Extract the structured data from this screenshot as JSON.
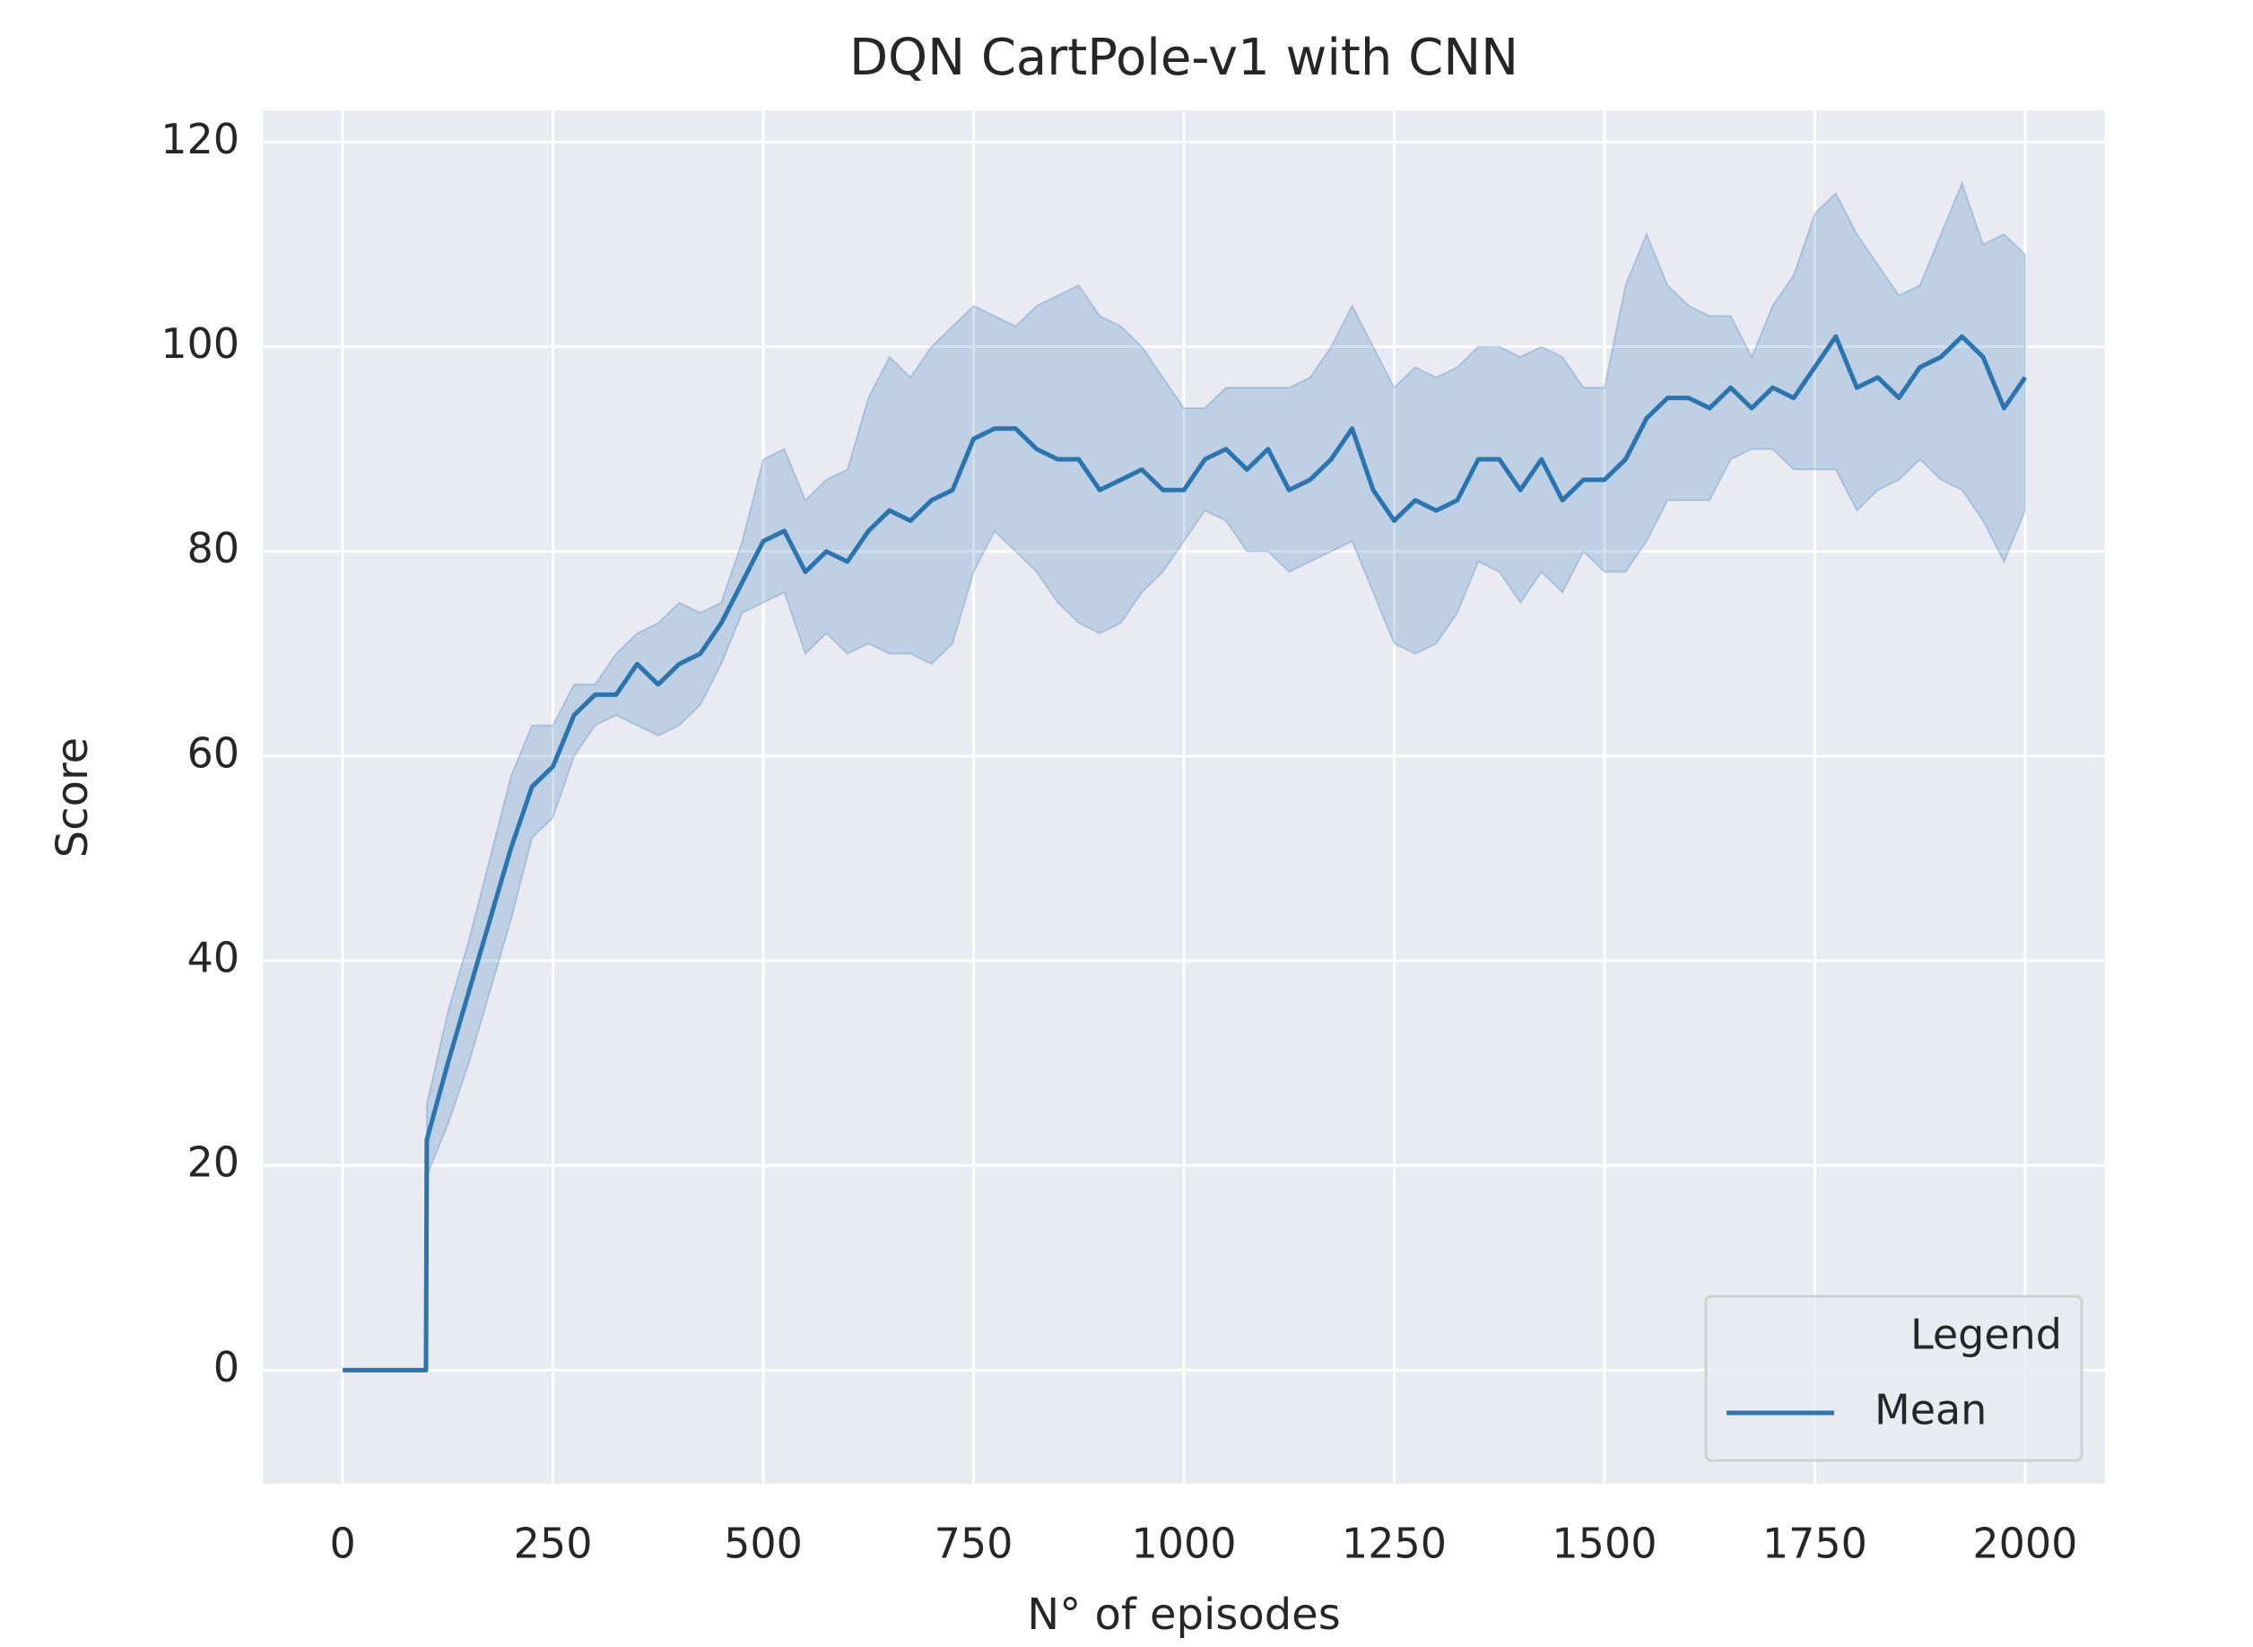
{
  "chart_data": {
    "type": "line",
    "title": "DQN CartPole-v1 with CNN",
    "xlabel": "N° of episodes",
    "ylabel": "Score",
    "legend_title": "Legend",
    "legend": "lower right",
    "grid": true,
    "x": [
      0,
      99,
      100,
      125,
      150,
      175,
      200,
      225,
      250,
      275,
      300,
      325,
      350,
      375,
      400,
      425,
      450,
      475,
      500,
      525,
      550,
      575,
      600,
      625,
      650,
      675,
      700,
      725,
      750,
      775,
      800,
      825,
      850,
      875,
      900,
      925,
      950,
      975,
      1000,
      1025,
      1050,
      1075,
      1100,
      1125,
      1150,
      1175,
      1200,
      1225,
      1250,
      1275,
      1300,
      1325,
      1350,
      1375,
      1400,
      1425,
      1450,
      1475,
      1500,
      1525,
      1550,
      1575,
      1600,
      1625,
      1650,
      1675,
      1700,
      1725,
      1750,
      1775,
      1800,
      1825,
      1850,
      1875,
      1900,
      1925,
      1950,
      1975,
      2000
    ],
    "series": [
      {
        "name": "Mean",
        "color": "#2a74b0",
        "values": [
          0,
          0,
          22.5,
          30,
          37,
          44,
          51,
          57,
          59,
          64,
          66,
          66,
          69,
          67,
          69,
          70,
          73,
          77,
          81,
          82,
          78,
          80,
          79,
          82,
          84,
          83,
          85,
          86,
          91,
          92,
          92,
          90,
          89,
          89,
          86,
          87,
          88,
          86,
          86,
          89,
          90,
          88,
          90,
          86,
          87,
          89,
          92,
          86,
          83,
          85,
          84,
          85,
          89,
          89,
          86,
          89,
          85,
          87,
          87,
          89,
          93,
          95,
          95,
          94,
          96,
          94,
          96,
          95,
          98,
          101,
          96,
          97,
          95,
          98,
          99,
          101,
          99,
          94,
          97
        ],
        "lower": [
          0,
          0,
          19,
          24,
          30,
          37,
          44,
          52,
          54,
          60,
          63,
          64,
          63,
          62,
          63,
          65,
          69,
          74,
          75,
          76,
          70,
          72,
          70,
          71,
          70,
          70,
          69,
          71,
          78,
          82,
          80,
          78,
          75,
          73,
          72,
          73,
          76,
          78,
          81,
          84,
          83,
          80,
          80,
          78,
          79,
          80,
          81,
          76,
          71,
          70,
          71,
          74,
          79,
          78,
          75,
          78,
          76,
          80,
          78,
          78,
          81,
          85,
          85,
          85,
          89,
          90,
          90,
          88,
          88,
          88,
          84,
          86,
          87,
          89,
          87,
          86,
          83,
          79,
          84
        ],
        "upper": [
          0,
          0,
          26,
          35,
          42,
          50,
          58,
          63,
          63,
          67,
          67,
          70,
          72,
          73,
          75,
          74,
          75,
          81,
          89,
          90,
          85,
          87,
          88,
          95,
          99,
          97,
          100,
          102,
          104,
          103,
          102,
          104,
          105,
          106,
          103,
          102,
          100,
          97,
          94,
          94,
          96,
          96,
          96,
          96,
          97,
          100,
          104,
          100,
          96,
          98,
          97,
          98,
          100,
          100,
          99,
          100,
          99,
          96,
          96,
          106,
          111,
          106,
          104,
          103,
          103,
          99,
          104,
          107,
          113,
          115,
          111,
          108,
          105,
          106,
          111,
          116,
          110,
          111,
          109
        ]
      }
    ],
    "xlim": [
      -95,
      2095
    ],
    "ylim": [
      -11.1,
      123.1
    ],
    "xticks": [
      0,
      250,
      500,
      750,
      1000,
      1250,
      1500,
      1750,
      2000
    ],
    "yticks": [
      0,
      20,
      40,
      60,
      80,
      100,
      120
    ]
  }
}
